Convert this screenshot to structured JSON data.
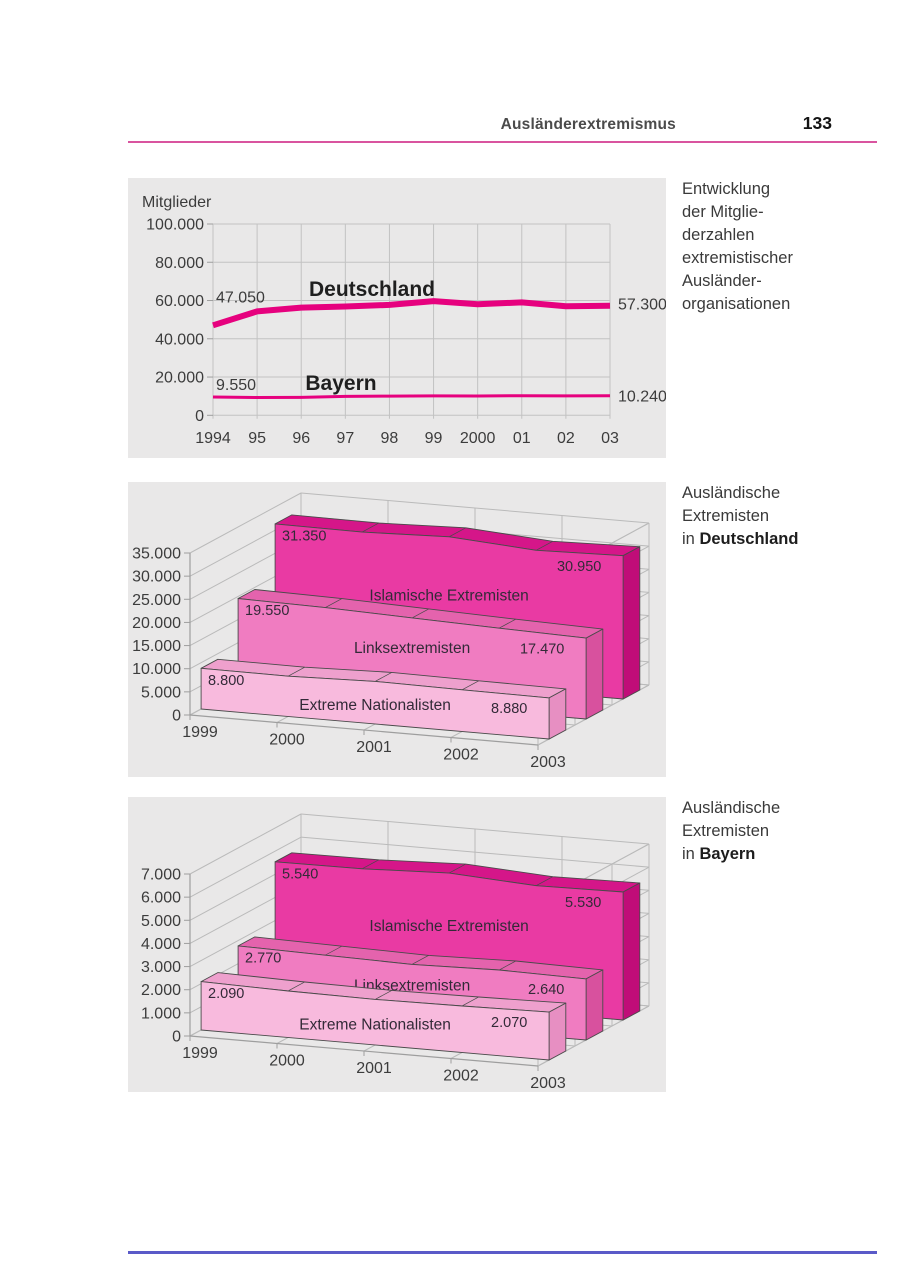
{
  "header": {
    "section_title": "Ausländerextremismus",
    "page_number": "133"
  },
  "colors": {
    "page_bg": "#ffffff",
    "panel_bg": "#e9e8e8",
    "grid": "#c2c2c2",
    "grid_3d": "#bababa",
    "axis": "#9e9e9e",
    "magenta": "#e6017e",
    "header_rule": "#d9549f",
    "bottom_rule": "#5a5ac8",
    "text": "#3c3c3c",
    "text_black": "#1f1f1f",
    "value_text": "#332a38",
    "edge": "#4a4a4a"
  },
  "captions": [
    {
      "lines": [
        "Entwicklung",
        "der Mitglie-",
        "derzahlen",
        "extremistischer",
        "Ausländer-",
        "organisationen"
      ]
    },
    {
      "lines": [
        "Ausländische",
        "Extremisten"
      ],
      "last_line": {
        "prefix": "in ",
        "bold": "Deutschland"
      }
    },
    {
      "lines": [
        "Ausländische",
        "Extremisten"
      ],
      "last_line": {
        "prefix": "in ",
        "bold": "Bayern"
      }
    }
  ],
  "chart_data": [
    {
      "type": "line",
      "title": "Entwicklung der Mitgliederzahlen extremistischer Ausländerorganisationen",
      "ylabel": "Mitglieder",
      "x_tick_labels": [
        "1994",
        "95",
        "96",
        "97",
        "98",
        "99",
        "2000",
        "01",
        "02",
        "03"
      ],
      "y_ticks": [
        {
          "label": "100.000",
          "value": 100000
        },
        {
          "label": "80.000",
          "value": 80000
        },
        {
          "label": "60.000",
          "value": 60000
        },
        {
          "label": "40.000",
          "value": 40000
        },
        {
          "label": "20.000",
          "value": 20000
        },
        {
          "label": "0",
          "value": 0
        }
      ],
      "ylim": [
        0,
        100000
      ],
      "grid": true,
      "series": [
        {
          "name": "Deutschland",
          "values": [
            47050,
            54300,
            56300,
            56900,
            57700,
            59700,
            58100,
            59000,
            57000,
            57300
          ],
          "start_label": "47.050",
          "end_label": "57.300",
          "stroke_width": 6
        },
        {
          "name": "Bayern",
          "values": [
            9550,
            9300,
            9350,
            9900,
            10050,
            10150,
            10100,
            10250,
            10150,
            10240
          ],
          "start_label": "9.550",
          "end_label": "10.240",
          "stroke_width": 3
        }
      ]
    },
    {
      "type": "3d-ribbon",
      "title": "Ausländische Extremisten in Deutschland",
      "categories": [
        "1999",
        "2000",
        "2001",
        "2002",
        "2003"
      ],
      "y_ticks": [
        {
          "label": "35.000",
          "value": 35000
        },
        {
          "label": "30.000",
          "value": 30000
        },
        {
          "label": "25.000",
          "value": 25000
        },
        {
          "label": "20.000",
          "value": 20000
        },
        {
          "label": "15.000",
          "value": 15000
        },
        {
          "label": "10.000",
          "value": 10000
        },
        {
          "label": "5.000",
          "value": 5000
        },
        {
          "label": "0",
          "value": 0
        }
      ],
      "ylim": [
        0,
        35000
      ],
      "series": [
        {
          "name": "Islamische Extremisten",
          "values": [
            31350,
            31200,
            31800,
            30500,
            30950
          ],
          "start_label": "31.350",
          "end_label": "30.950",
          "colors": {
            "front": "#e93aa3",
            "top": "#d51689",
            "side": "#c00d78"
          }
        },
        {
          "name": "Linksextremisten",
          "values": [
            19550,
            19200,
            18600,
            18000,
            17470
          ],
          "start_label": "19.550",
          "end_label": "17.470",
          "colors": {
            "front": "#f07cc1",
            "top": "#e463ad",
            "side": "#d8519e"
          }
        },
        {
          "name": "Extreme Nationalisten",
          "values": [
            8800,
            8700,
            9200,
            9000,
            8880
          ],
          "start_label": "8.800",
          "end_label": "8.880",
          "colors": {
            "front": "#f8badd",
            "top": "#eea0cd",
            "side": "#e78fc2"
          }
        }
      ]
    },
    {
      "type": "3d-ribbon",
      "title": "Ausländische Extremisten in Bayern",
      "categories": [
        "1999",
        "2000",
        "2001",
        "2002",
        "2003"
      ],
      "y_ticks": [
        {
          "label": "7.000",
          "value": 7000
        },
        {
          "label": "6.000",
          "value": 6000
        },
        {
          "label": "5.000",
          "value": 5000
        },
        {
          "label": "4.000",
          "value": 4000
        },
        {
          "label": "3.000",
          "value": 3000
        },
        {
          "label": "2.000",
          "value": 2000
        },
        {
          "label": "1.000",
          "value": 1000
        },
        {
          "label": "0",
          "value": 0
        }
      ],
      "ylim": [
        0,
        7000
      ],
      "series": [
        {
          "name": "Islamische Extremisten",
          "values": [
            5540,
            5560,
            5700,
            5480,
            5530
          ],
          "start_label": "5.540",
          "end_label": "5.530",
          "colors": {
            "front": "#e93aa3",
            "top": "#d51689",
            "side": "#c00d78"
          }
        },
        {
          "name": "Linksextremisten",
          "values": [
            2770,
            2690,
            2620,
            2700,
            2640
          ],
          "start_label": "2.770",
          "end_label": "2.640",
          "colors": {
            "front": "#f07cc1",
            "top": "#e463ad",
            "side": "#d8519e"
          }
        },
        {
          "name": "Extreme Nationalisten",
          "values": [
            2090,
            2010,
            1970,
            2010,
            2070
          ],
          "start_label": "2.090",
          "end_label": "2.070",
          "colors": {
            "front": "#f8badd",
            "top": "#eea0cd",
            "side": "#e78fc2"
          }
        }
      ]
    }
  ]
}
